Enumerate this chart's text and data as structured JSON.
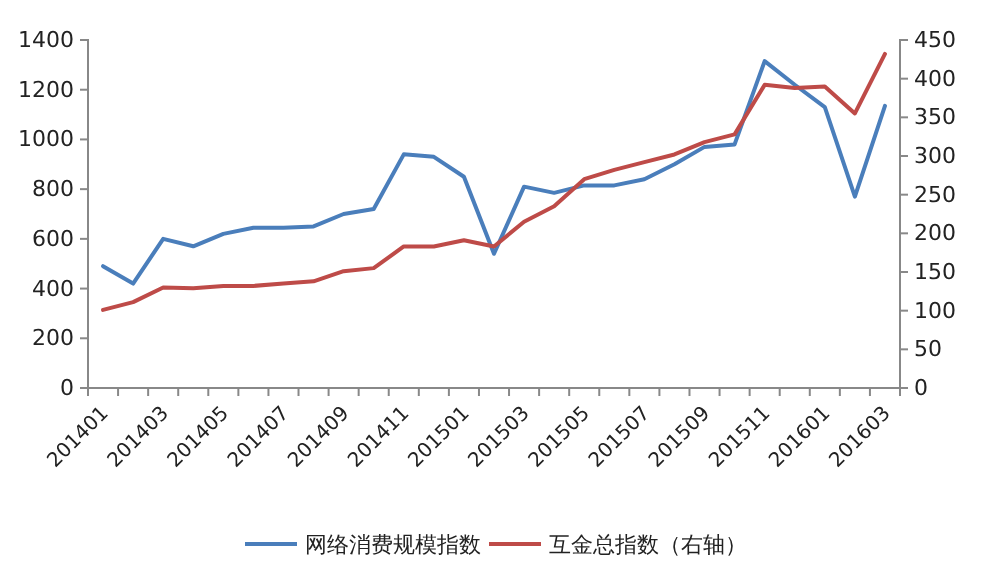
{
  "chart_data": {
    "type": "line",
    "categories": [
      "201401",
      null,
      "201403",
      null,
      "201405",
      null,
      "201407",
      null,
      "201409",
      null,
      "201411",
      null,
      "201501",
      null,
      "201503",
      null,
      "201505",
      null,
      "201507",
      null,
      "201509",
      null,
      "201511",
      null,
      "201601",
      null,
      "201603"
    ],
    "series": [
      {
        "name": "网络消费规模指数",
        "color": "#4a7ebb",
        "values": [
          490,
          420,
          600,
          570,
          620,
          645,
          645,
          650,
          700,
          720,
          940,
          930,
          850,
          540,
          810,
          785,
          815,
          815,
          840,
          900,
          970,
          980,
          1315,
          1220,
          1130,
          770,
          1135
        ]
      },
      {
        "name": "互金总指数（右轴）",
        "color": "#be4b48",
        "axis": "y2",
        "values": [
          101,
          111,
          130,
          129,
          132,
          132,
          135,
          138,
          151,
          155,
          183,
          183,
          191,
          183,
          215,
          235,
          270,
          282,
          292,
          302,
          318,
          328,
          392,
          388,
          390,
          355,
          432
        ]
      }
    ],
    "ylim": [
      0,
      1400
    ],
    "yticks": [
      0,
      200,
      400,
      600,
      800,
      1000,
      1200,
      1400
    ],
    "y2lim": [
      0,
      450
    ],
    "y2ticks": [
      0,
      50,
      100,
      150,
      200,
      250,
      300,
      350,
      400,
      450
    ],
    "legend": "bottom",
    "grid": false,
    "marker": "none",
    "line_style": "solid"
  }
}
